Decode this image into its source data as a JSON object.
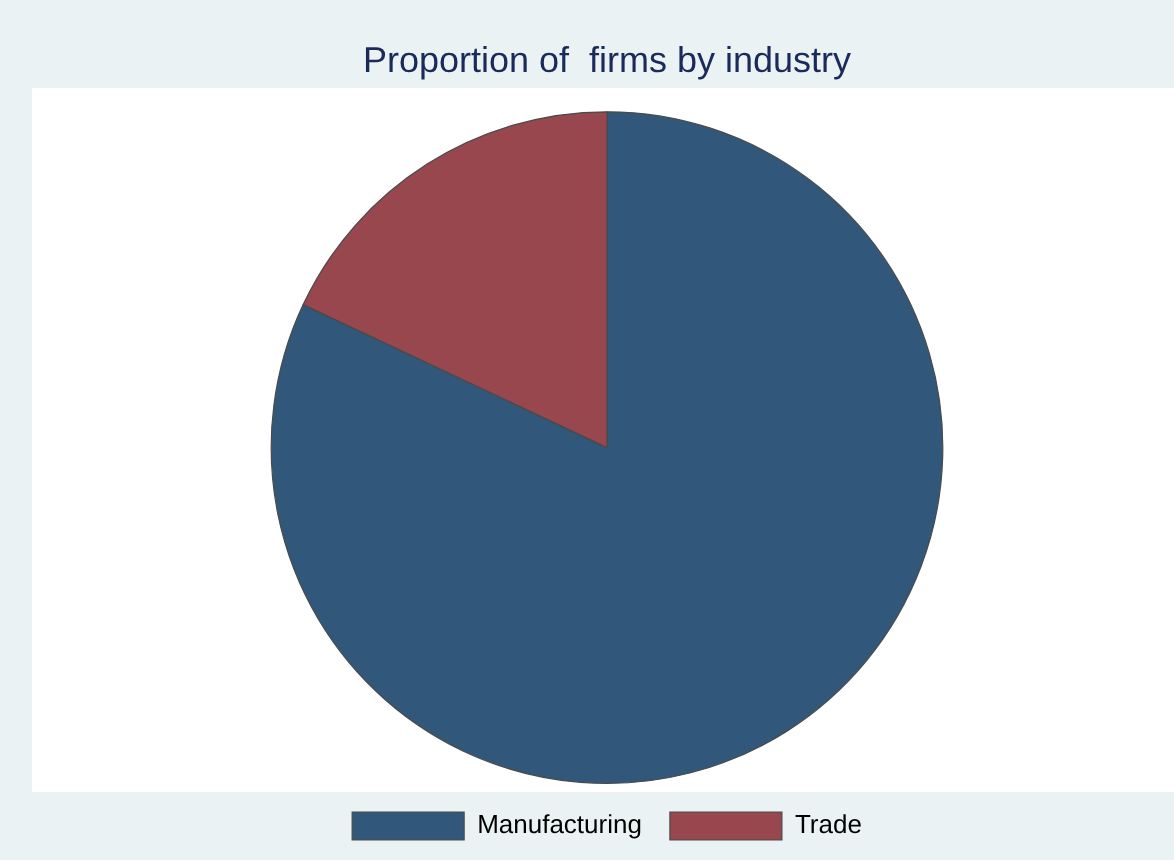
{
  "chart_data": {
    "type": "pie",
    "title": "Proportion of  firms by industry",
    "categories": [
      "Manufacturing",
      "Trade"
    ],
    "values": [
      82,
      18
    ],
    "colors": [
      "#31587b",
      "#97474d"
    ],
    "legend": "bottom"
  }
}
